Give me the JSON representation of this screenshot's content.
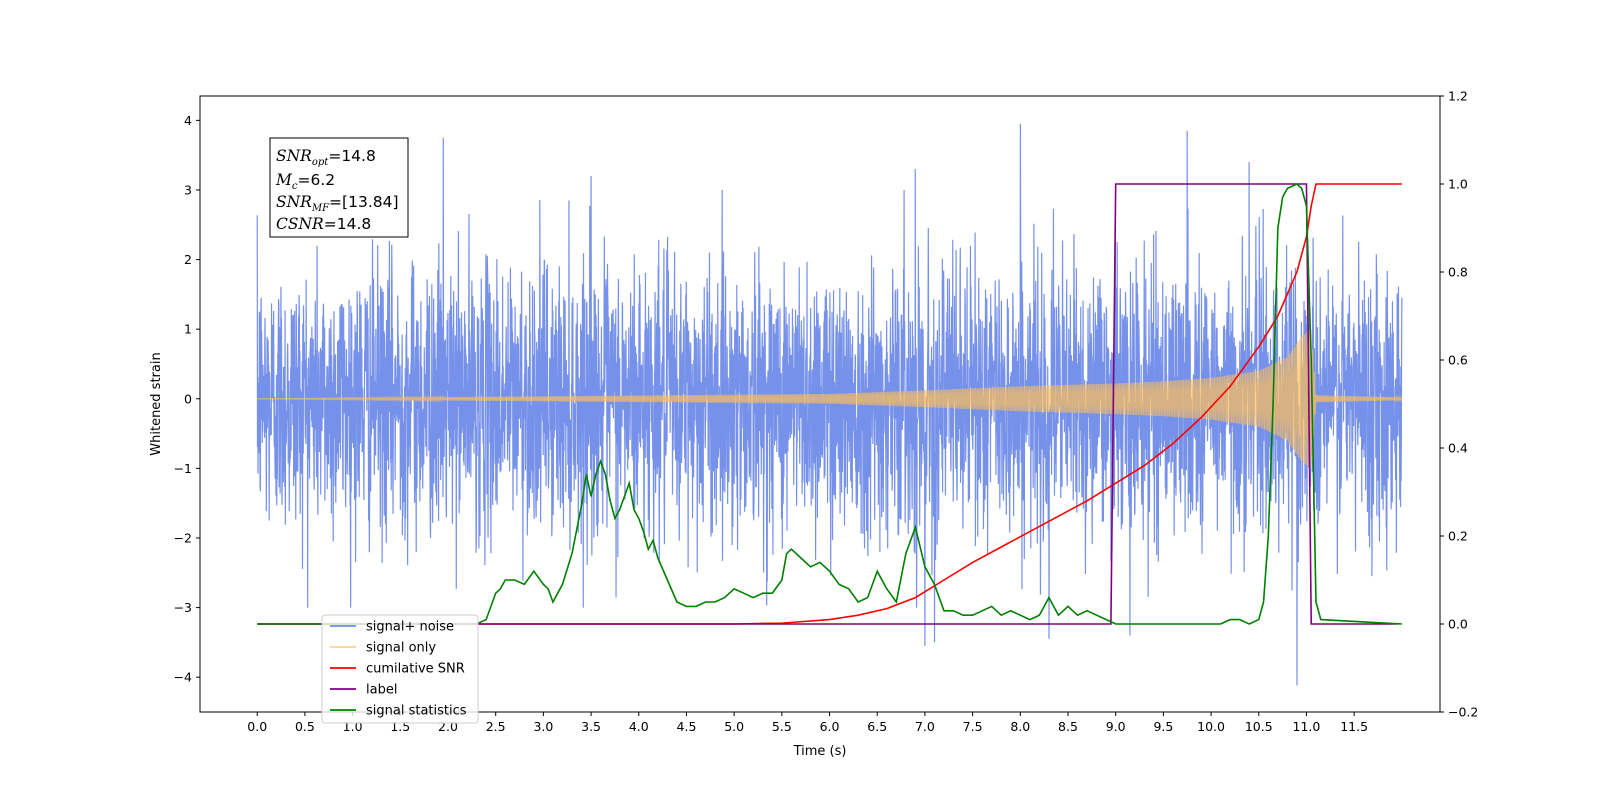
{
  "chart_data": {
    "type": "line",
    "title": "",
    "xlabel": "Time (s)",
    "ylabel": "Whitened strain",
    "xlim": [
      -0.6,
      12.4
    ],
    "ylim": [
      -4.5,
      4.35
    ],
    "y2lim": [
      -0.2,
      1.2
    ],
    "x_ticks": [
      0.0,
      0.5,
      1.0,
      1.5,
      2.0,
      2.5,
      3.0,
      3.5,
      4.0,
      4.5,
      5.0,
      5.5,
      6.0,
      6.5,
      7.0,
      7.5,
      8.0,
      8.5,
      9.0,
      9.5,
      10.0,
      10.5,
      11.0,
      11.5
    ],
    "x_tick_labels": [
      "0.0",
      "0.5",
      "1.0",
      "1.5",
      "2.0",
      "2.5",
      "3.0",
      "3.5",
      "4.0",
      "4.5",
      "5.0",
      "5.5",
      "6.0",
      "6.5",
      "7.0",
      "7.5",
      "8.0",
      "8.5",
      "9.0",
      "9.5",
      "10.0",
      "10.5",
      "11.0",
      "11.5"
    ],
    "y_ticks": [
      -4,
      -3,
      -2,
      -1,
      0,
      1,
      2,
      3,
      4
    ],
    "y_tick_labels": [
      "−4",
      "−3",
      "−2",
      "−1",
      "0",
      "1",
      "2",
      "3",
      "4"
    ],
    "y2_ticks": [
      -0.2,
      0.0,
      0.2,
      0.4,
      0.6,
      0.8,
      1.0,
      1.2
    ],
    "y2_tick_labels": [
      "−0.2",
      "0.0",
      "0.2",
      "0.4",
      "0.6",
      "0.8",
      "1.0",
      "1.2"
    ],
    "grid": false,
    "legend_position": "lower-left",
    "annotation": {
      "snr_opt": "14.8",
      "mc": "6.2",
      "snr_mf": "[13.84]",
      "csnr": "14.8"
    },
    "series": [
      {
        "name": "signal+ noise",
        "color": "#6f8be8",
        "axis": "left",
        "kind": "noise",
        "x_range": [
          0.0,
          12.0
        ],
        "envelope_sigma": 0.95,
        "peaks": [
          [
            1.95,
            3.75
          ],
          [
            3.5,
            3.2
          ],
          [
            6.9,
            3.3
          ],
          [
            8.0,
            3.95
          ],
          [
            9.75,
            3.85
          ],
          [
            10.4,
            3.4
          ],
          [
            7.1,
            -3.5
          ],
          [
            7.0,
            -3.55
          ],
          [
            10.9,
            -4.12
          ],
          [
            8.3,
            -3.45
          ],
          [
            9.15,
            -3.4
          ]
        ]
      },
      {
        "name": "signal only",
        "color": "#ffbf59",
        "axis": "left",
        "kind": "chirp",
        "x_range": [
          0.0,
          12.0
        ],
        "envelope": [
          [
            0.0,
            0.0
          ],
          [
            6.0,
            0.07
          ],
          [
            7.0,
            0.12
          ],
          [
            8.0,
            0.18
          ],
          [
            9.0,
            0.22
          ],
          [
            9.5,
            0.25
          ],
          [
            10.0,
            0.3
          ],
          [
            10.5,
            0.4
          ],
          [
            10.8,
            0.6
          ],
          [
            10.95,
            0.9
          ],
          [
            11.05,
            1.0
          ],
          [
            11.1,
            0.05
          ],
          [
            12.0,
            0.02
          ]
        ]
      },
      {
        "name": "cumilative SNR",
        "color": "#ff0000",
        "axis": "right",
        "x": [
          0.0,
          5.0,
          5.5,
          6.0,
          6.3,
          6.6,
          6.9,
          7.2,
          7.5,
          7.8,
          8.1,
          8.4,
          8.7,
          9.0,
          9.3,
          9.6,
          9.9,
          10.2,
          10.5,
          10.7,
          10.9,
          11.0,
          11.05,
          11.1,
          12.0
        ],
        "values": [
          0.0,
          0.0,
          0.002,
          0.01,
          0.02,
          0.035,
          0.06,
          0.1,
          0.14,
          0.175,
          0.21,
          0.245,
          0.28,
          0.32,
          0.36,
          0.41,
          0.47,
          0.54,
          0.63,
          0.7,
          0.8,
          0.88,
          0.95,
          1.0,
          1.0
        ]
      },
      {
        "name": "label",
        "color": "#800080",
        "axis": "right",
        "x": [
          0.0,
          8.95,
          9.0,
          11.0,
          11.05,
          11.95
        ],
        "values": [
          0.0,
          0.0,
          1.0,
          1.0,
          0.0,
          0.0
        ]
      },
      {
        "name": "signal statistics",
        "color": "#008000",
        "axis": "right",
        "x": [
          0.0,
          2.3,
          2.4,
          2.45,
          2.5,
          2.55,
          2.6,
          2.7,
          2.8,
          2.9,
          3.0,
          3.05,
          3.1,
          3.2,
          3.3,
          3.4,
          3.45,
          3.5,
          3.55,
          3.6,
          3.65,
          3.7,
          3.75,
          3.8,
          3.85,
          3.9,
          3.95,
          4.0,
          4.05,
          4.1,
          4.15,
          4.2,
          4.3,
          4.4,
          4.5,
          4.6,
          4.7,
          4.8,
          4.9,
          5.0,
          5.1,
          5.2,
          5.3,
          5.4,
          5.5,
          5.55,
          5.6,
          5.7,
          5.8,
          5.9,
          6.0,
          6.1,
          6.2,
          6.3,
          6.4,
          6.5,
          6.6,
          6.7,
          6.8,
          6.9,
          7.0,
          7.1,
          7.2,
          7.3,
          7.4,
          7.5,
          7.6,
          7.7,
          7.8,
          7.9,
          8.0,
          8.1,
          8.2,
          8.3,
          8.4,
          8.5,
          8.6,
          8.7,
          9.0,
          9.5,
          10.0,
          10.1,
          10.2,
          10.3,
          10.4,
          10.5,
          10.55,
          10.6,
          10.65,
          10.7,
          10.75,
          10.8,
          10.9,
          10.95,
          11.0,
          11.05,
          11.1,
          11.15,
          12.0
        ],
        "values": [
          0.0,
          0.0,
          0.01,
          0.04,
          0.07,
          0.08,
          0.1,
          0.1,
          0.09,
          0.12,
          0.09,
          0.08,
          0.05,
          0.09,
          0.16,
          0.27,
          0.34,
          0.29,
          0.34,
          0.37,
          0.34,
          0.28,
          0.24,
          0.26,
          0.29,
          0.32,
          0.26,
          0.24,
          0.21,
          0.17,
          0.19,
          0.15,
          0.1,
          0.05,
          0.04,
          0.04,
          0.05,
          0.05,
          0.06,
          0.08,
          0.07,
          0.06,
          0.07,
          0.07,
          0.1,
          0.16,
          0.17,
          0.15,
          0.13,
          0.14,
          0.12,
          0.09,
          0.08,
          0.05,
          0.06,
          0.12,
          0.08,
          0.05,
          0.16,
          0.22,
          0.13,
          0.09,
          0.03,
          0.03,
          0.02,
          0.02,
          0.03,
          0.04,
          0.02,
          0.03,
          0.02,
          0.01,
          0.02,
          0.06,
          0.02,
          0.04,
          0.02,
          0.03,
          0.0,
          0.0,
          0.0,
          0.0,
          0.01,
          0.01,
          0.0,
          0.01,
          0.05,
          0.2,
          0.5,
          0.9,
          0.97,
          0.99,
          1.0,
          0.99,
          0.95,
          0.6,
          0.05,
          0.01,
          0.0
        ]
      }
    ]
  }
}
